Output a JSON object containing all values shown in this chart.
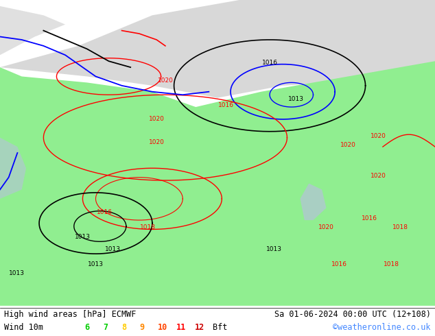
{
  "title_left": "High wind areas [hPa] ECMWF",
  "title_right": "Sa 01-06-2024 00:00 UTC (12+108)",
  "subtitle_left": "Wind 10m",
  "subtitle_right": "©weatheronline.co.uk",
  "bft_labels": [
    "6",
    "7",
    "8",
    "9",
    "10",
    "11",
    "12"
  ],
  "bft_colors": [
    "#00cc00",
    "#00cc00",
    "#ffcc00",
    "#ff8800",
    "#ff4400",
    "#ff0000",
    "#cc0000"
  ],
  "bft_suffix": "Bft",
  "bg_color": "#f0f0f0",
  "map_bg": "#90ee90",
  "sea_color": "#d3d3d3",
  "title_fontsize": 9,
  "body_bg": "#ffffff"
}
